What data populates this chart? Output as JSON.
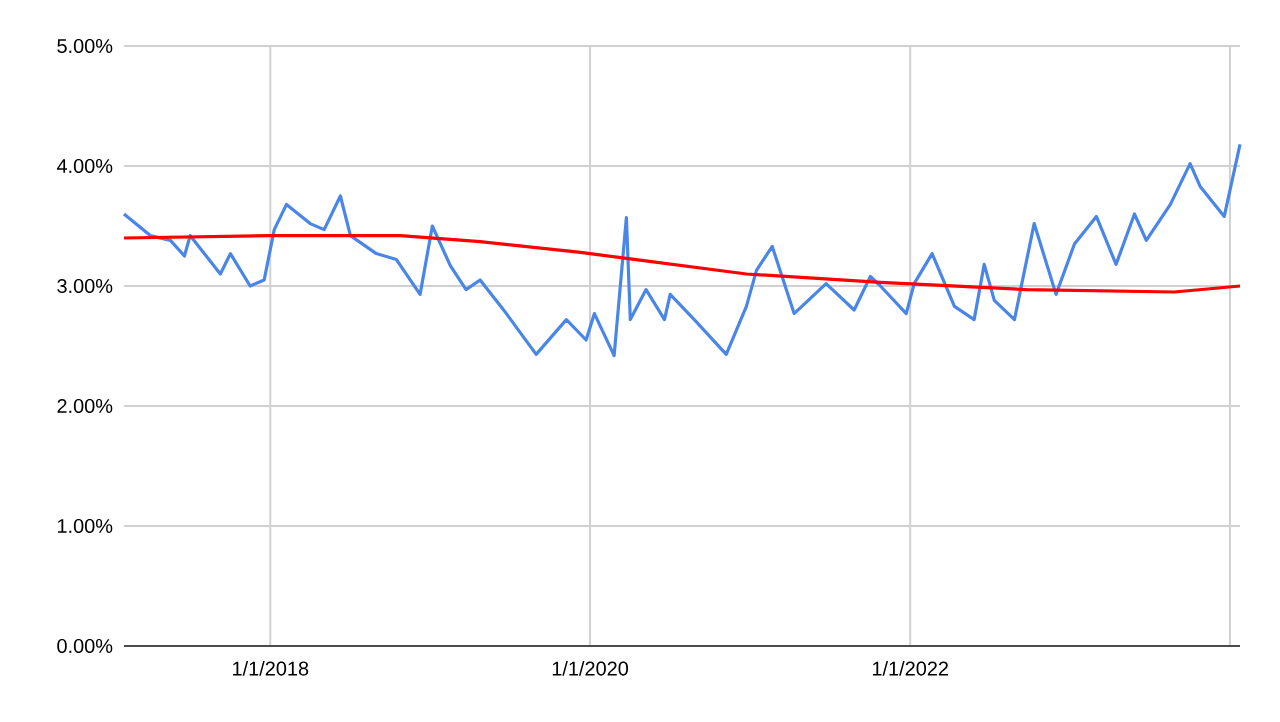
{
  "chart_data": {
    "type": "line",
    "xlim": [
      "2017-02-01",
      "2024-01-24"
    ],
    "xticks": [
      {
        "value": "2018-01-01",
        "label": "1/1/2018"
      },
      {
        "value": "2020-01-01",
        "label": "1/1/2020"
      },
      {
        "value": "2022-01-01",
        "label": "1/1/2022"
      },
      {
        "value": "2024-01-01",
        "label": null
      }
    ],
    "ylim": [
      0,
      5
    ],
    "yticks": [
      {
        "value": 0,
        "label": "0.00%"
      },
      {
        "value": 1,
        "label": "1.00%"
      },
      {
        "value": 2,
        "label": "2.00%"
      },
      {
        "value": 3,
        "label": "3.00%"
      },
      {
        "value": 4,
        "label": "4.00%"
      },
      {
        "value": 5,
        "label": "5.00%"
      }
    ],
    "grid": true,
    "marker": "none",
    "line_style": "solid",
    "series": [
      {
        "color": "#4a86e8",
        "x": [
          "2017-02-01",
          "2017-04-02",
          "2017-05-18",
          "2017-06-19",
          "2017-07-02",
          "2017-09-09",
          "2017-10-02",
          "2017-11-16",
          "2017-12-18",
          "2018-01-10",
          "2018-02-07",
          "2018-04-02",
          "2018-05-04",
          "2018-06-10",
          "2018-07-03",
          "2018-08-31",
          "2018-10-16",
          "2018-12-09",
          "2019-01-06",
          "2019-02-16",
          "2019-03-24",
          "2019-04-25",
          "2019-06-24",
          "2019-08-31",
          "2019-11-08",
          "2019-12-23",
          "2020-01-11",
          "2020-02-25",
          "2020-03-24",
          "2020-04-02",
          "2020-05-08",
          "2020-06-19",
          "2020-07-02",
          "2020-08-26",
          "2020-11-07",
          "2020-12-23",
          "2021-01-15",
          "2021-02-20",
          "2021-04-11",
          "2021-06-23",
          "2021-08-26",
          "2021-10-02",
          "2021-10-25",
          "2021-12-23",
          "2022-01-10",
          "2022-02-20",
          "2022-04-12",
          "2022-05-27",
          "2022-06-19",
          "2022-07-12",
          "2022-08-27",
          "2022-10-11",
          "2022-11-30",
          "2023-01-11",
          "2023-03-02",
          "2023-04-16",
          "2023-05-28",
          "2023-06-24",
          "2023-08-18",
          "2023-10-02",
          "2023-10-25",
          "2023-12-19",
          "2024-01-24"
        ],
        "values": [
          3.6,
          3.42,
          3.38,
          3.25,
          3.42,
          3.1,
          3.27,
          3.0,
          3.05,
          3.47,
          3.68,
          3.52,
          3.47,
          3.75,
          3.42,
          3.27,
          3.22,
          2.93,
          3.5,
          3.17,
          2.97,
          3.05,
          2.77,
          2.43,
          2.72,
          2.55,
          2.77,
          2.42,
          3.57,
          2.72,
          2.97,
          2.72,
          2.93,
          2.72,
          2.43,
          2.83,
          3.13,
          3.33,
          2.77,
          3.02,
          2.8,
          3.08,
          3.0,
          2.77,
          3.02,
          3.27,
          2.83,
          2.72,
          3.18,
          2.88,
          2.72,
          3.52,
          2.93,
          3.35,
          3.58,
          3.18,
          3.6,
          3.38,
          3.68,
          4.02,
          3.83,
          3.58,
          4.18
        ]
      },
      {
        "color": "#ff0000",
        "x": [
          "2017-02-01",
          "2018-01-01",
          "2018-10-25",
          "2019-04-25",
          "2019-12-10",
          "2020-03-24",
          "2020-12-23",
          "2021-10-25",
          "2022-09-23",
          "2023-08-27",
          "2024-01-24"
        ],
        "values": [
          3.4,
          3.42,
          3.42,
          3.37,
          3.28,
          3.23,
          3.1,
          3.03,
          2.97,
          2.95,
          3.0
        ]
      }
    ]
  }
}
